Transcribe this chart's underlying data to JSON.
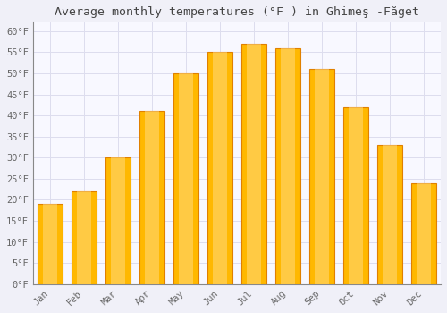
{
  "title": "Average monthly temperatures (°F ) in Ghimeş -Făget",
  "months": [
    "Jan",
    "Feb",
    "Mar",
    "Apr",
    "May",
    "Jun",
    "Jul",
    "Aug",
    "Sep",
    "Oct",
    "Nov",
    "Dec"
  ],
  "values": [
    19,
    22,
    30,
    41,
    50,
    55,
    57,
    56,
    51,
    42,
    33,
    24
  ],
  "bar_color": "#FFB800",
  "bar_edge_color": "#E08000",
  "background_color": "#F0F0F8",
  "plot_bg_color": "#F8F8FF",
  "grid_color": "#DDDDEE",
  "ylim": [
    0,
    62
  ],
  "yticks": [
    0,
    5,
    10,
    15,
    20,
    25,
    30,
    35,
    40,
    45,
    50,
    55,
    60
  ],
  "title_fontsize": 9.5,
  "tick_fontsize": 7.5,
  "tick_color": "#666666",
  "title_color": "#444444",
  "bar_width": 0.75
}
